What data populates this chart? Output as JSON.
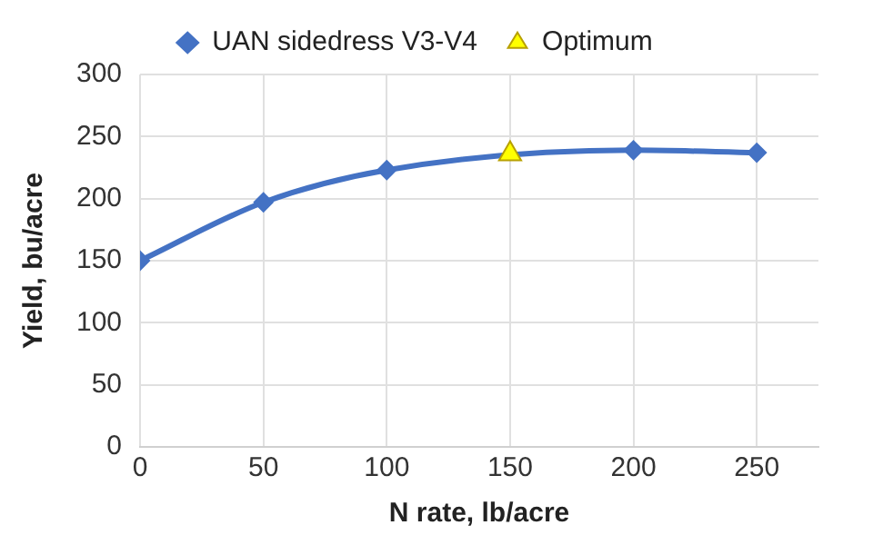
{
  "chart_data": {
    "type": "line",
    "xlabel": "N rate, lb/acre",
    "ylabel": "Yield, bu/acre",
    "xlim": [
      0,
      275
    ],
    "xticks": [
      0,
      50,
      100,
      150,
      200,
      250
    ],
    "ylim": [
      0,
      300
    ],
    "yticks": [
      0,
      50,
      100,
      150,
      200,
      250,
      300
    ],
    "grid": true,
    "legend": "top",
    "line_style": "solid",
    "series": [
      {
        "name": "UAN sidedress V3-V4",
        "marker": "diamond",
        "color": "#4472c4",
        "x": [
          0,
          50,
          100,
          150,
          200,
          250
        ],
        "values": [
          150,
          197,
          223,
          null,
          239,
          237
        ]
      },
      {
        "name": "Optimum",
        "type": "scatter",
        "marker": "triangle",
        "color": "#ffff00",
        "x": [
          150
        ],
        "values": [
          236
        ]
      }
    ]
  }
}
